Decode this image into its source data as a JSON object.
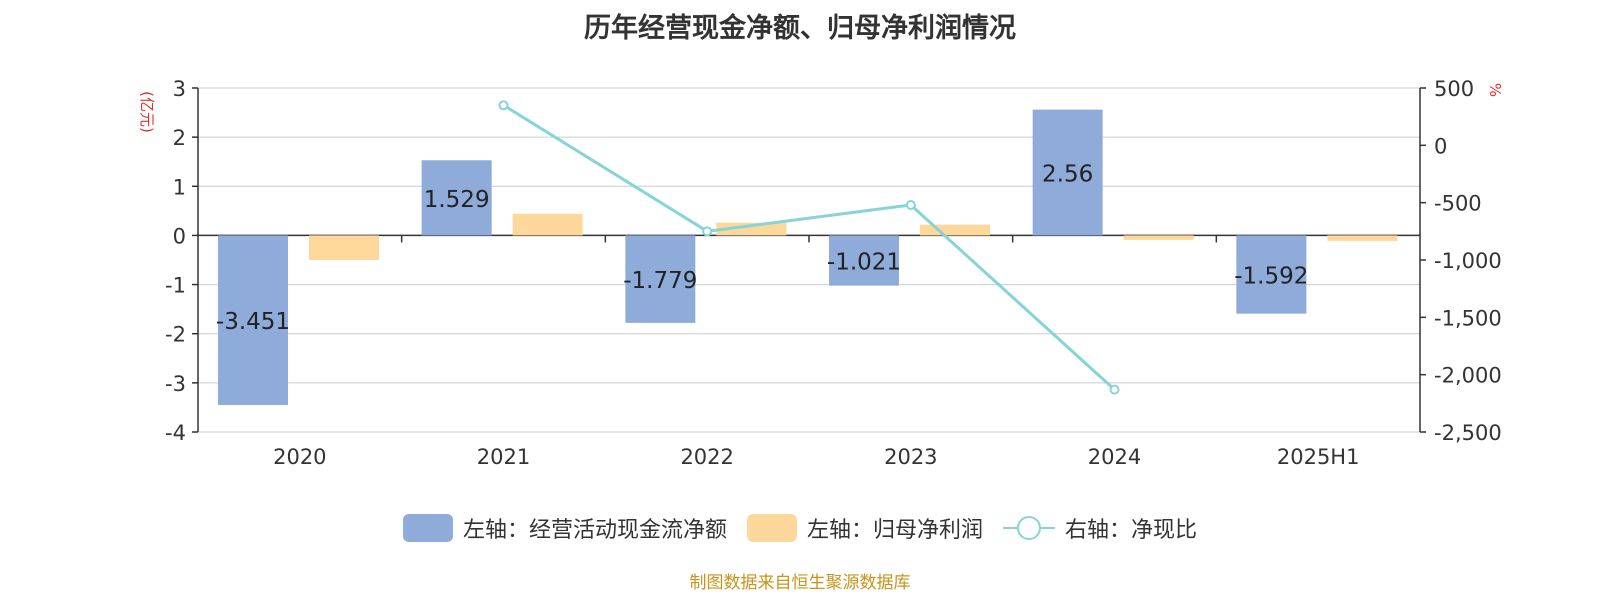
{
  "chart_data": {
    "type": "bar",
    "title": "历年经营现金净额、归母净利润情况",
    "categories": [
      "2020",
      "2021",
      "2022",
      "2023",
      "2024",
      "2025H1"
    ],
    "left_axis": {
      "unit": "(亿元)",
      "range": [
        -4,
        3
      ],
      "ticks": [
        "3",
        "2",
        "1",
        "0",
        "-1",
        "-2",
        "-3",
        "-4"
      ]
    },
    "right_axis": {
      "unit": "%",
      "range": [
        -2500,
        500
      ],
      "ticks": [
        "500",
        "0",
        "-500",
        "-1,000",
        "-1,500",
        "-2,000",
        "-2,500"
      ]
    },
    "grid": true,
    "legend_position": "bottom",
    "series": [
      {
        "name": "左轴：经营活动现金流净额",
        "type": "bar",
        "axis": "left",
        "color": "#8eabd9",
        "values": [
          -3.451,
          1.529,
          -1.779,
          -1.021,
          2.56,
          -1.592
        ],
        "labels": [
          "-3.451",
          "1.529",
          "-1.779",
          "-1.021",
          "2.56",
          "-1.592"
        ]
      },
      {
        "name": "左轴：归母净利润",
        "type": "bar",
        "axis": "right_placeholder",
        "color": "#fdd89a",
        "values": [
          -0.5,
          0.44,
          0.26,
          0.22,
          -0.09,
          -0.11
        ]
      },
      {
        "name": "右轴：净现比",
        "type": "line",
        "axis": "right",
        "color": "#86d4d8",
        "values": [
          null,
          350,
          -750,
          -520,
          -2130,
          null
        ]
      }
    ]
  },
  "source": "制图数据来自恒生聚源数据库"
}
